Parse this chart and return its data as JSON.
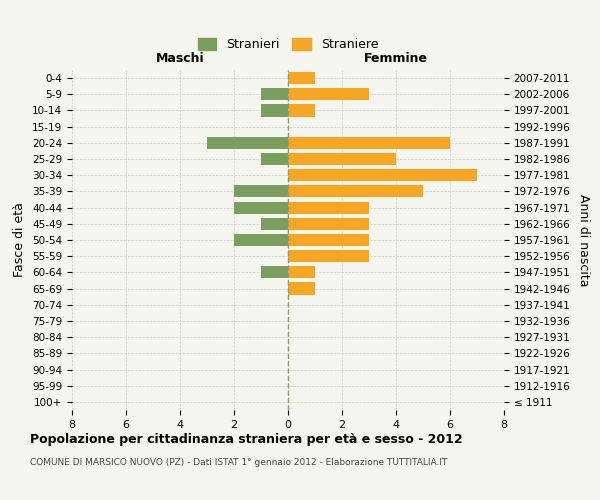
{
  "age_groups": [
    "100+",
    "95-99",
    "90-94",
    "85-89",
    "80-84",
    "75-79",
    "70-74",
    "65-69",
    "60-64",
    "55-59",
    "50-54",
    "45-49",
    "40-44",
    "35-39",
    "30-34",
    "25-29",
    "20-24",
    "15-19",
    "10-14",
    "5-9",
    "0-4"
  ],
  "birth_years": [
    "≤ 1911",
    "1912-1916",
    "1917-1921",
    "1922-1926",
    "1927-1931",
    "1932-1936",
    "1937-1941",
    "1942-1946",
    "1947-1951",
    "1952-1956",
    "1957-1961",
    "1962-1966",
    "1967-1971",
    "1972-1976",
    "1977-1981",
    "1982-1986",
    "1987-1991",
    "1992-1996",
    "1997-2001",
    "2002-2006",
    "2007-2011"
  ],
  "maschi": [
    0,
    0,
    0,
    0,
    0,
    0,
    0,
    0,
    1,
    0,
    2,
    1,
    2,
    2,
    0,
    1,
    3,
    0,
    1,
    1,
    0
  ],
  "femmine": [
    0,
    0,
    0,
    0,
    0,
    0,
    0,
    1,
    1,
    3,
    3,
    3,
    3,
    5,
    7,
    4,
    6,
    0,
    1,
    3,
    1
  ],
  "color_maschi": "#7a9e5f",
  "color_femmine": "#f5a623",
  "background_color": "#f5f5f0",
  "grid_color": "#cccccc",
  "title": "Popolazione per cittadinanza straniera per età e sesso - 2012",
  "subtitle": "COMUNE DI MARSICO NUOVO (PZ) - Dati ISTAT 1° gennaio 2012 - Elaborazione TUTTITALIA.IT",
  "ylabel_left": "Fasce di età",
  "ylabel_right": "Anni di nascita",
  "xlabel_left": "Maschi",
  "xlabel_right": "Femmine",
  "xlim": 8,
  "legend_maschi": "Stranieri",
  "legend_femmine": "Straniere"
}
